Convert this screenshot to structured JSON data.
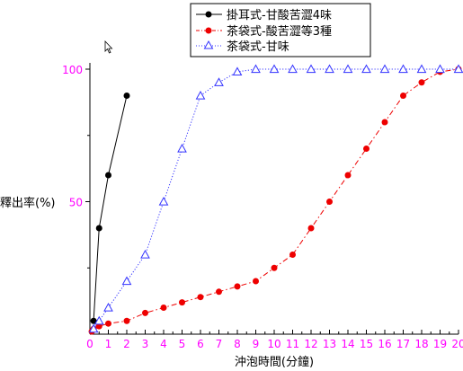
{
  "chart_data": {
    "type": "line",
    "xlabel": "沖泡時間(分鐘)",
    "ylabel": "釋出率(%)",
    "xlim": [
      0,
      20
    ],
    "ylim": [
      0,
      100
    ],
    "x_ticks": [
      0,
      1,
      2,
      3,
      4,
      5,
      6,
      7,
      8,
      9,
      10,
      11,
      12,
      13,
      14,
      15,
      16,
      17,
      18,
      19,
      20
    ],
    "y_ticks": [
      50,
      100
    ],
    "grid": false,
    "legend_position": "top-center",
    "series": [
      {
        "name": "掛耳式-甘酸苦澀4味",
        "color": "#000000",
        "line_style": "solid",
        "marker": "filled-circle",
        "x": [
          0.2,
          0.5,
          1,
          2
        ],
        "y": [
          5,
          40,
          60,
          90
        ]
      },
      {
        "name": "茶袋式-酸苦澀等3種",
        "color": "#ee0000",
        "line_style": "dash-dot",
        "marker": "filled-circle",
        "x": [
          0.1,
          0.2,
          0.5,
          1,
          2,
          3,
          4,
          5,
          6,
          7,
          8,
          9,
          10,
          11,
          12,
          13,
          14,
          15,
          16,
          17,
          18,
          19,
          20
        ],
        "y": [
          1,
          2,
          3,
          4,
          5,
          8,
          10,
          12,
          14,
          16,
          18,
          20,
          25,
          30,
          40,
          50,
          60,
          70,
          80,
          90,
          95,
          99,
          100
        ]
      },
      {
        "name": "茶袋式-甘味",
        "color": "#3333ff",
        "line_style": "dotted",
        "marker": "open-triangle",
        "x": [
          0.2,
          0.5,
          1,
          2,
          3,
          4,
          5,
          6,
          7,
          8,
          9,
          10,
          11,
          12,
          13,
          14,
          15,
          16,
          17,
          18,
          19,
          20
        ],
        "y": [
          2,
          5,
          10,
          20,
          30,
          50,
          70,
          90,
          95,
          99,
          100,
          100,
          100,
          100,
          100,
          100,
          100,
          100,
          100,
          100,
          100,
          100
        ]
      }
    ]
  }
}
